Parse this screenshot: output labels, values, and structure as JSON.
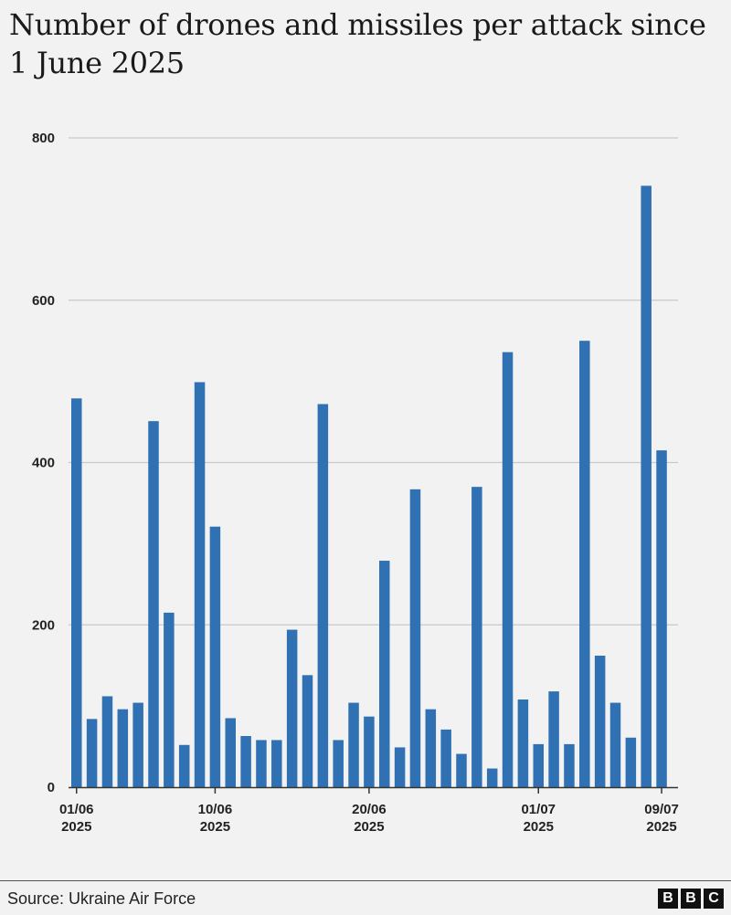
{
  "header": {
    "title": "Number of drones and missiles per attack since 1 June 2025"
  },
  "chart_data": {
    "type": "bar",
    "title": "Number of drones and missiles per attack since 1 June 2025",
    "xlabel": "",
    "ylabel": "",
    "ylim": [
      0,
      800
    ],
    "yticks": [
      "0",
      "200",
      "400",
      "600",
      "800"
    ],
    "grid": true,
    "bar_color": "#2f71b3",
    "x_tick_labels": [
      {
        "index": 0,
        "date": "01/06",
        "year": "2025"
      },
      {
        "index": 9,
        "date": "10/06",
        "year": "2025"
      },
      {
        "index": 19,
        "date": "20/06",
        "year": "2025"
      },
      {
        "index": 30,
        "date": "01/07",
        "year": "2025"
      },
      {
        "index": 38,
        "date": "09/07",
        "year": "2025"
      }
    ],
    "values": [
      479,
      84,
      112,
      96,
      104,
      451,
      215,
      52,
      499,
      321,
      85,
      63,
      58,
      58,
      194,
      138,
      472,
      58,
      104,
      87,
      279,
      49,
      367,
      96,
      71,
      41,
      370,
      23,
      536,
      108,
      53,
      118,
      53,
      550,
      162,
      104,
      61,
      741,
      415
    ]
  },
  "footer": {
    "source": "Source: Ukraine Air Force",
    "logo_letters": [
      "B",
      "B",
      "C"
    ]
  }
}
